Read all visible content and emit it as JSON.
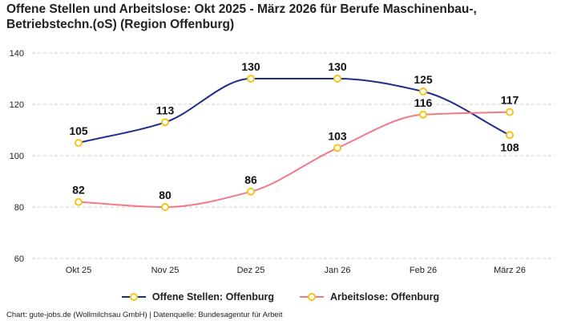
{
  "title_line1": "Offene Stellen und Arbeitslose: Okt 2025 - März 2026 für Berufe Maschinenbau-,",
  "title_line2": "Betriebstechn.(oS) (Region Offenburg)",
  "footer": "Chart: gute-jobs.de (Wollmilchsau GmbH) | Datenquelle: Bundesagentur für Arbeit",
  "chart_data": {
    "type": "line",
    "categories": [
      "Okt 25",
      "Nov 25",
      "Dez 25",
      "Jan 26",
      "Feb 26",
      "März 26"
    ],
    "ylim": [
      60,
      140
    ],
    "yticks": [
      60,
      80,
      100,
      120,
      140
    ],
    "grid": true,
    "legend_position": "bottom",
    "series": [
      {
        "name": "Offene Stellen: Offenburg",
        "values": [
          105,
          113,
          130,
          130,
          125,
          108
        ],
        "color": "#1f2d8a"
      },
      {
        "name": "Arbeitslose: Offenburg",
        "values": [
          82,
          80,
          86,
          103,
          116,
          117
        ],
        "color": "#f27a86"
      }
    ],
    "marker_color": "#f5c518"
  }
}
